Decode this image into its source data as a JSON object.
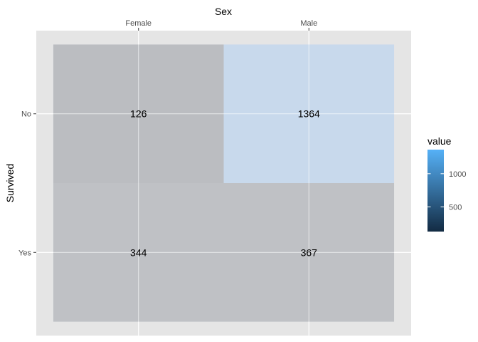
{
  "chart_data": {
    "type": "heatmap",
    "xlabel": "Sex",
    "ylabel": "Survived",
    "x_categories": [
      "Female",
      "Male"
    ],
    "y_categories": [
      "No",
      "Yes"
    ],
    "x_axis_position": "top",
    "cells": [
      {
        "x": "Female",
        "y": "No",
        "value": 126
      },
      {
        "x": "Male",
        "y": "No",
        "value": 1364
      },
      {
        "x": "Female",
        "y": "Yes",
        "value": 344
      },
      {
        "x": "Male",
        "y": "Yes",
        "value": 367
      }
    ],
    "cell_labels": [
      "126",
      "1364",
      "344",
      "367"
    ],
    "legend": {
      "title": "value",
      "placement": "right",
      "ticks": [
        500,
        1000
      ],
      "tick_labels": [
        "500",
        "1000"
      ],
      "range": [
        126,
        1364
      ],
      "colors": {
        "low": "#132b43",
        "high": "#56b1f7"
      }
    },
    "tile_alpha": 0.2,
    "grid": true,
    "colors": {
      "panel_background": "#e5e5e5",
      "grid_line": "#ffffff",
      "tile_tint": "#8f9096"
    }
  }
}
